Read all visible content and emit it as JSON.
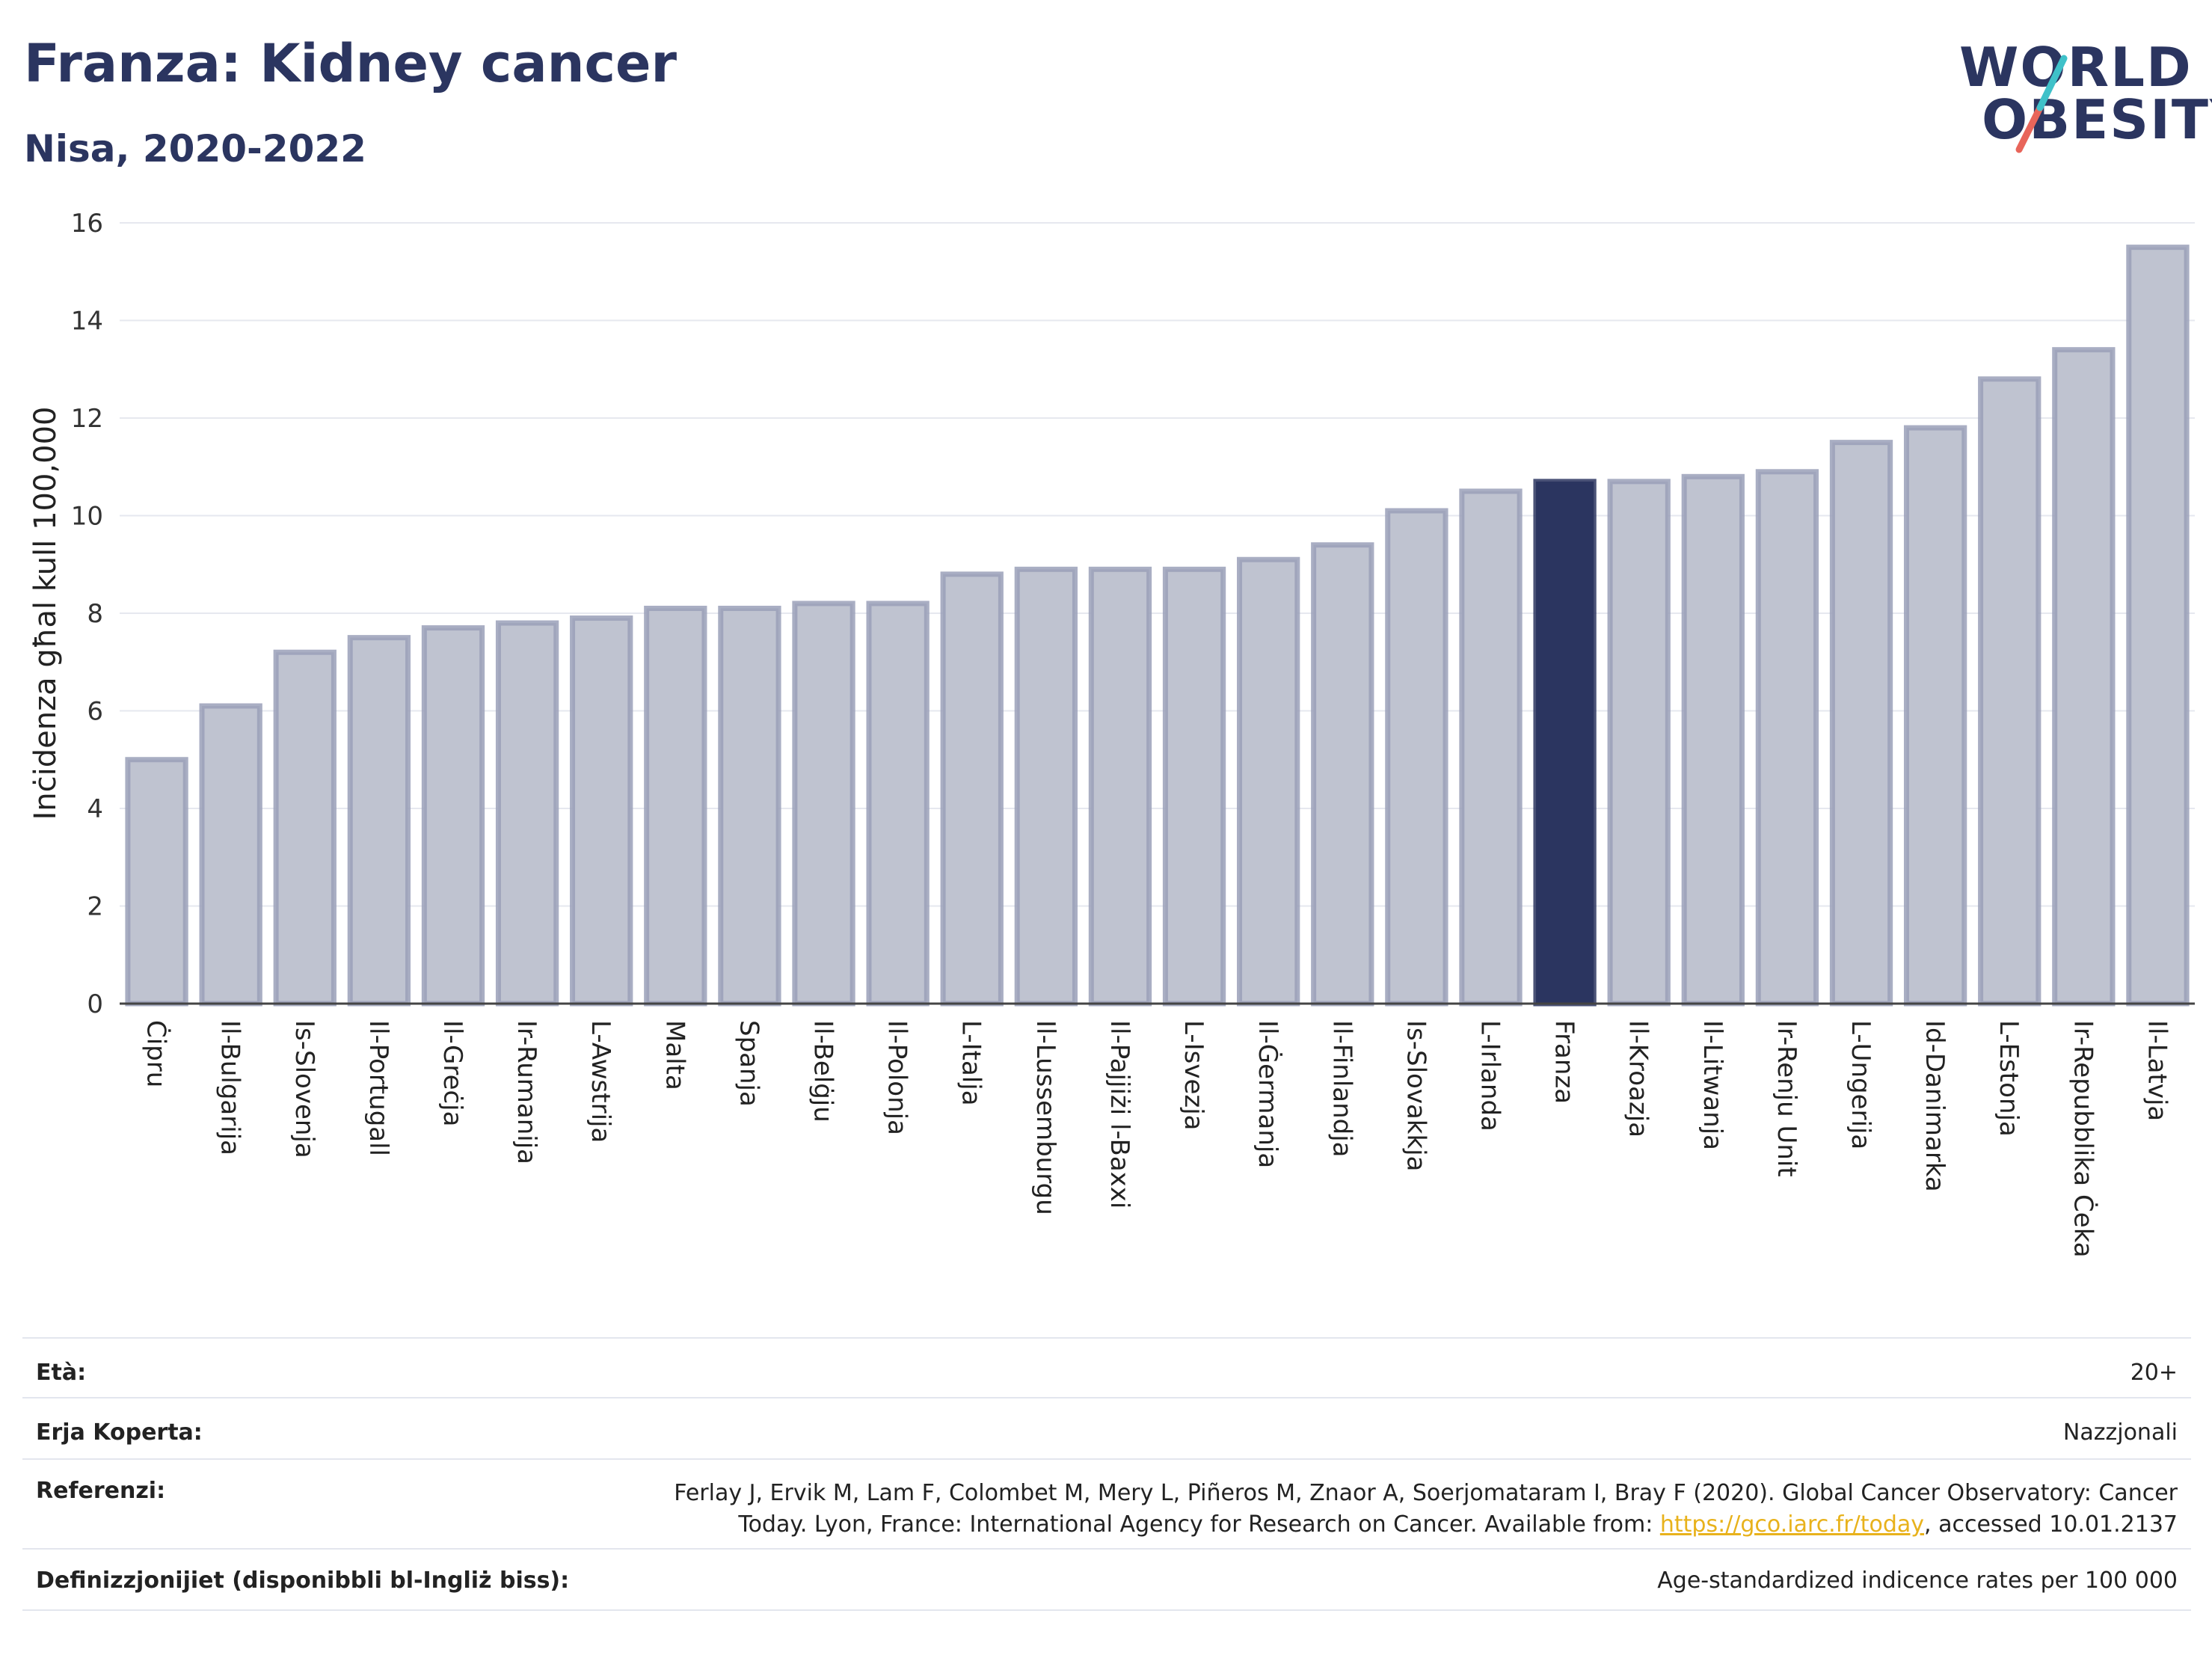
{
  "header": {
    "title": "Franza: Kidney cancer",
    "subtitle": "Nisa, 2020-2022"
  },
  "logo": {
    "line1": "WORLD",
    "line2": "OBESITY",
    "accent_colors": [
      "#3fc1c9",
      "#e8655a"
    ]
  },
  "chart_data": {
    "type": "bar",
    "ylabel": "Inċidenza għal kull 100,000",
    "ylim": [
      0,
      16
    ],
    "yticks": [
      0,
      2,
      4,
      6,
      8,
      10,
      12,
      14,
      16
    ],
    "grid": true,
    "highlight": "Franza",
    "colors": {
      "bar": "#bfc3d0",
      "bar_edge": "#9aa0b8",
      "highlight": "#2b3560"
    },
    "categories": [
      "Ċipru",
      "Il-Bulgarija",
      "Is-Slovenja",
      "Il-Portugall",
      "Il-Greċja",
      "Ir-Rumanija",
      "L-Awstrija",
      "Malta",
      "Spanja",
      "Il-Belġju",
      "Il-Polonja",
      "L-Italja",
      "Il-Lussemburgu",
      "Il-Pajjiżi l-Baxxi",
      "L-Isvezja",
      "Il-Ġermanja",
      "Il-Finlandja",
      "Is-Slovakkja",
      "L-Irlanda",
      "Franza",
      "Il-Kroazja",
      "Il-Litwanja",
      "Ir-Renju Unit",
      "L-Ungerija",
      "Id-Danimarka",
      "L-Estonja",
      "Ir-Repubblika Ċeka",
      "Il-Latvja"
    ],
    "values": [
      5.0,
      6.1,
      7.2,
      7.5,
      7.7,
      7.8,
      7.9,
      8.1,
      8.1,
      8.2,
      8.2,
      8.8,
      8.9,
      8.9,
      8.9,
      9.1,
      9.4,
      10.1,
      10.5,
      10.7,
      10.7,
      10.8,
      10.9,
      11.5,
      11.8,
      12.8,
      13.4,
      15.5
    ]
  },
  "meta": {
    "age_label": "Età:",
    "age_value": "20+",
    "area_label": "Erja Koperta:",
    "area_value": "Nazzjonali",
    "ref_label": "Referenzi:",
    "ref_line1": "Ferlay J, Ervik M, Lam F, Colombet M, Mery L, Piñeros M, Znaor A, Soerjomataram I, Bray F (2020). Global Cancer Observatory: Cancer",
    "ref_line2_pre": "Today. Lyon, France: International Agency for Research on Cancer. Available from: ",
    "ref_link": "https://gco.iarc.fr/today",
    "ref_line2_post": ", accessed 10.01.2137",
    "def_label": "Definizzjonijiet (disponibbli bl-Ingliż biss):",
    "def_value": "Age-standardized indicence rates per 100 000"
  }
}
